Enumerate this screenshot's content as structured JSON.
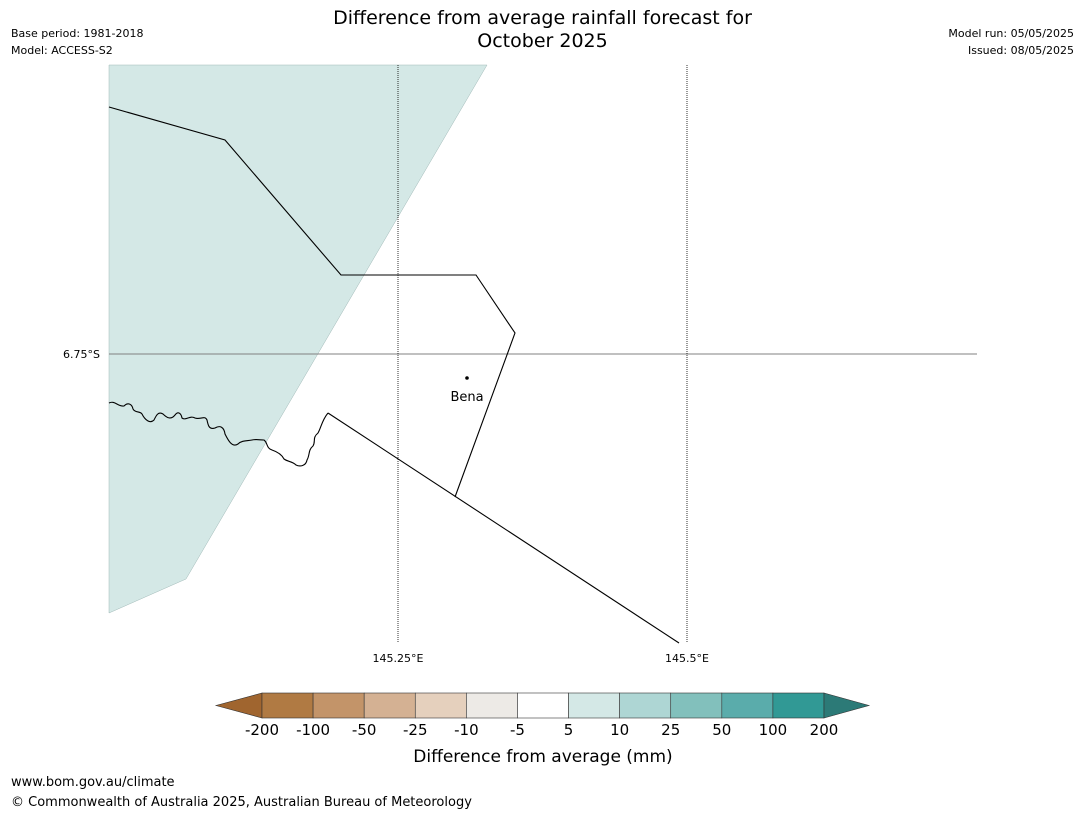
{
  "title_line1": "Difference from average rainfall forecast for",
  "title_line2": "October 2025",
  "base_period": "Base period: 1981-2018",
  "model": "Model: ACCESS-S2",
  "model_run": "Model run: 05/05/2025",
  "issued": "Issued: 08/05/2025",
  "map": {
    "lat_label": "6.75°S",
    "lon_labels": [
      "145.25°E",
      "145.5°E"
    ],
    "place_name": "Bena",
    "region_fill_color": "#d4e8e6",
    "region_fill_category": "5 to 10"
  },
  "colorbar": {
    "ticks": [
      "-200",
      "-100",
      "-50",
      "-25",
      "-10",
      "-5",
      "5",
      "10",
      "25",
      "50",
      "100",
      "200"
    ],
    "colors": [
      "#a0652f",
      "#b07a43",
      "#c39469",
      "#d4b193",
      "#e5d0bd",
      "#edeae6",
      "#ffffff",
      "#d4e8e6",
      "#aed6d4",
      "#82c0bc",
      "#5aacab",
      "#319995",
      "#2c7a77"
    ],
    "label": "Difference from average (mm)"
  },
  "footer_url": "www.bom.gov.au/climate",
  "footer_copyright": "© Commonwealth of Australia 2025, Australian Bureau of Meteorology"
}
